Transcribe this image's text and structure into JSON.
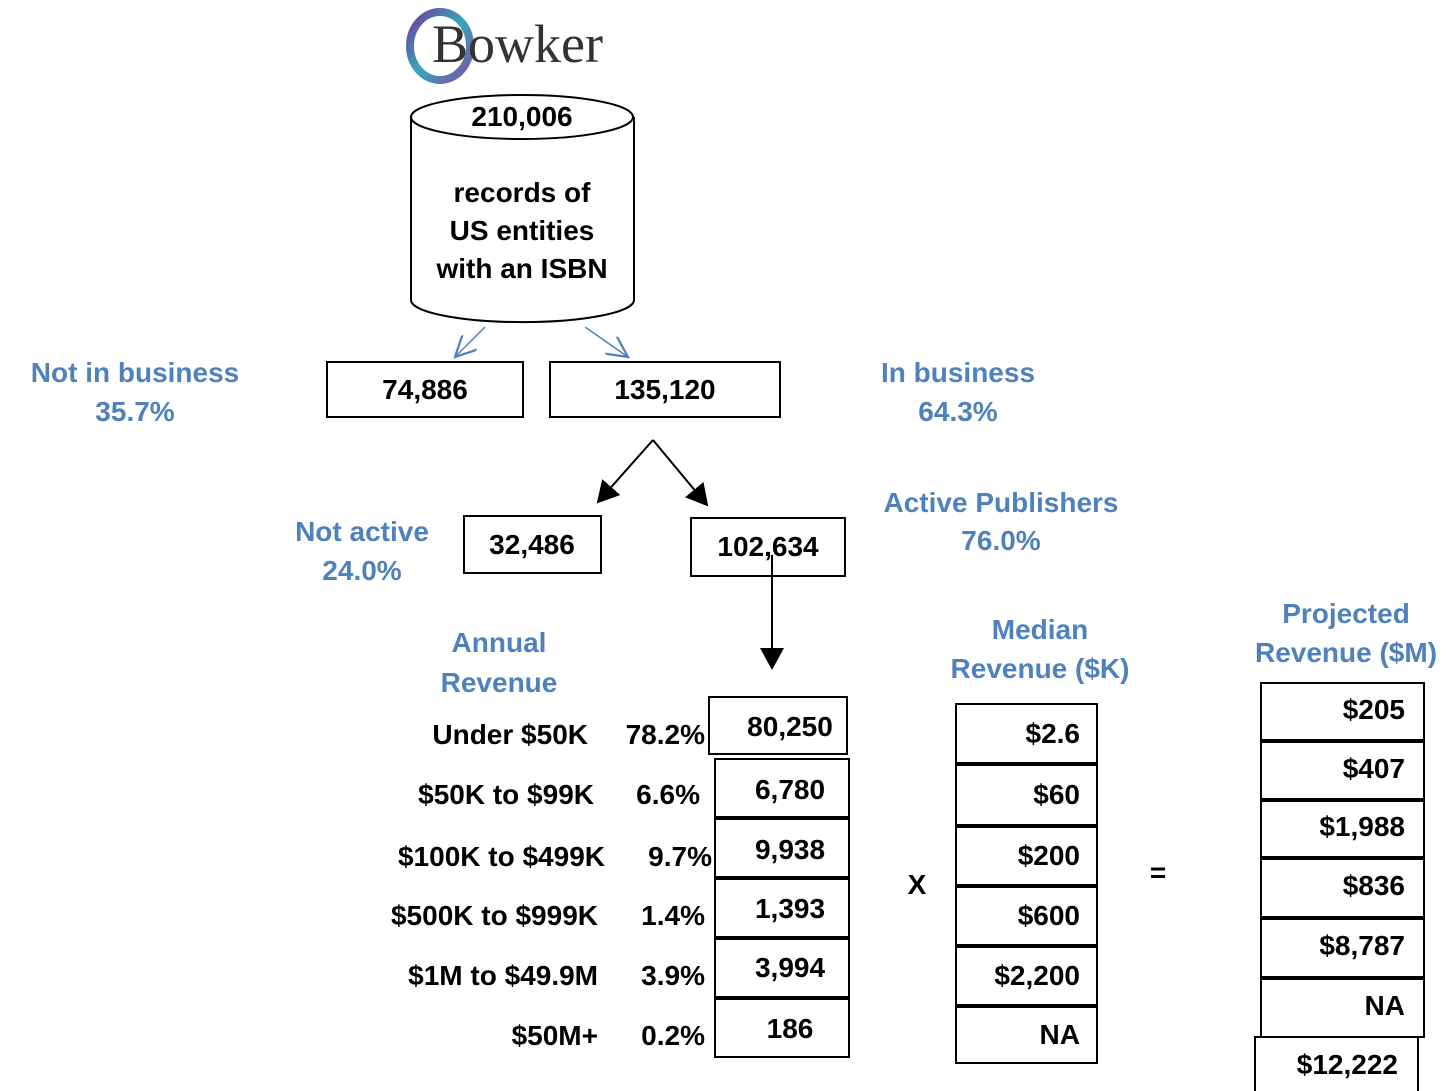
{
  "logo": "Bowker",
  "database": {
    "count": "210,006",
    "description": [
      "records of",
      "US entities",
      "with an ISBN"
    ]
  },
  "business_split": [
    {
      "label": "Not in business",
      "percent": "35.7%",
      "count": "74,886"
    },
    {
      "label": "In business",
      "percent": "64.3%",
      "count": "135,120"
    }
  ],
  "activity_split": [
    {
      "label": "Not active",
      "percent": "24.0%",
      "count": "32,486"
    },
    {
      "label": "Active Publishers",
      "percent": "76.0%",
      "count": "102,634"
    }
  ],
  "revenue_table": {
    "headings": {
      "annual": [
        "Annual",
        "Revenue"
      ],
      "median": [
        "Median",
        "Revenue ($K)"
      ],
      "projected": [
        "Projected",
        "Revenue ($M)"
      ]
    },
    "operators": {
      "multiply": "X",
      "equals": "="
    },
    "rows": [
      {
        "band": "Under $50K",
        "share": "78.2%",
        "count": "80,250",
        "median": "$2.6",
        "projected": "$205"
      },
      {
        "band": "$50K to $99K",
        "share": "6.6%",
        "count": "6,780",
        "median": "$60",
        "projected": "$407"
      },
      {
        "band": "$100K to $499K",
        "share": "9.7%",
        "count": "9,938",
        "median": "$200",
        "projected": "$1,988"
      },
      {
        "band": "$500K to $999K",
        "share": "1.4%",
        "count": "1,393",
        "median": "$600",
        "projected": "$836"
      },
      {
        "band": "$1M to $49.9M",
        "share": "3.9%",
        "count": "3,994",
        "median": "$2,200",
        "projected": "$8,787"
      },
      {
        "band": "$50M+",
        "share": "0.2%",
        "count": "186",
        "median": "NA",
        "projected": "NA"
      }
    ],
    "total": "$12,222"
  }
}
